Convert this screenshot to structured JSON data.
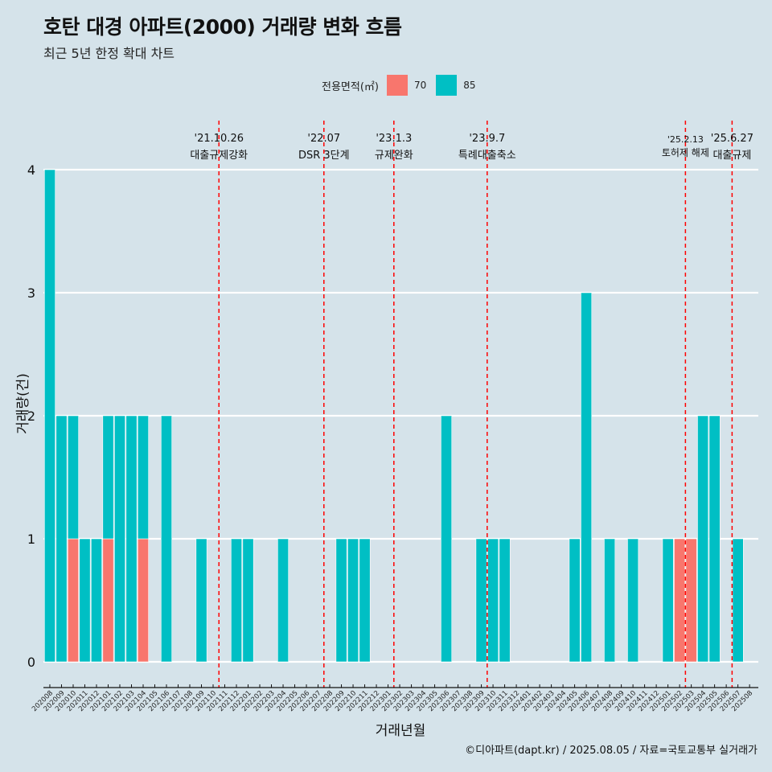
{
  "title": "호탄 대경 아파트(2000) 거래량 변화 흐름",
  "subtitle": "최근 5년 한정 확대 차트",
  "caption": "©디아파트(dapt.kr) / 2025.08.05 / 자료=국토교통부 실거래가",
  "legend": {
    "title": "전용면적(㎡)",
    "items": [
      {
        "label": "70",
        "color": "#f8766d"
      },
      {
        "label": "85",
        "color": "#00bfc4"
      }
    ]
  },
  "chart_data": {
    "type": "bar",
    "xlabel": "거래년월",
    "ylabel": "거래량(건)",
    "ylim": [
      0,
      4
    ],
    "yticks": [
      0,
      1,
      2,
      3,
      4
    ],
    "grid": true,
    "legend_position": "top",
    "categories": [
      "202008",
      "202009",
      "202010",
      "202011",
      "202012",
      "202101",
      "202102",
      "202103",
      "202104",
      "202105",
      "202106",
      "202107",
      "202108",
      "202109",
      "202110",
      "202111",
      "202112",
      "202201",
      "202202",
      "202203",
      "202204",
      "202205",
      "202206",
      "202207",
      "202208",
      "202209",
      "202210",
      "202211",
      "202212",
      "202301",
      "202302",
      "202303",
      "202304",
      "202305",
      "202306",
      "202307",
      "202308",
      "202309",
      "202310",
      "202311",
      "202312",
      "202401",
      "202402",
      "202403",
      "202404",
      "202405",
      "202406",
      "202407",
      "202408",
      "202409",
      "202410",
      "202411",
      "202412",
      "202501",
      "202502",
      "202503",
      "202504",
      "202505",
      "202506",
      "202507",
      "202508"
    ],
    "series": [
      {
        "name": "70",
        "color": "#f8766d",
        "values": [
          0,
          0,
          1,
          0,
          0,
          1,
          0,
          0,
          1,
          0,
          0,
          0,
          0,
          0,
          0,
          0,
          0,
          0,
          0,
          0,
          0,
          0,
          0,
          0,
          0,
          0,
          0,
          0,
          0,
          0,
          0,
          0,
          0,
          0,
          0,
          0,
          0,
          0,
          0,
          0,
          0,
          0,
          0,
          0,
          0,
          0,
          0,
          0,
          0,
          0,
          0,
          0,
          0,
          0,
          1,
          1,
          0,
          0,
          0,
          0,
          0
        ]
      },
      {
        "name": "85",
        "color": "#00bfc4",
        "values": [
          4,
          2,
          1,
          1,
          1,
          1,
          2,
          2,
          1,
          0,
          2,
          0,
          0,
          1,
          0,
          0,
          1,
          1,
          0,
          0,
          1,
          0,
          0,
          0,
          0,
          1,
          1,
          1,
          0,
          0,
          0,
          0,
          0,
          0,
          2,
          0,
          0,
          1,
          1,
          1,
          0,
          0,
          0,
          0,
          0,
          1,
          3,
          0,
          1,
          0,
          1,
          0,
          0,
          1,
          0,
          0,
          2,
          2,
          0,
          1,
          0
        ]
      }
    ],
    "annotations": [
      {
        "date": "'21.10.26",
        "text": "대출규제강화",
        "x": "202110"
      },
      {
        "date": "'22.07",
        "text": "DSR 3단계",
        "x": "202207"
      },
      {
        "date": "'23.1.3",
        "text": "규제완화",
        "x": "202301"
      },
      {
        "date": "'23.9.7",
        "text": "특례대출축소",
        "x": "202309"
      },
      {
        "date": "'25.2.13",
        "text": "토허제 해제",
        "x": "202502"
      },
      {
        "date": "'25.6.27",
        "text": "대출규제",
        "x": "202506"
      }
    ]
  }
}
